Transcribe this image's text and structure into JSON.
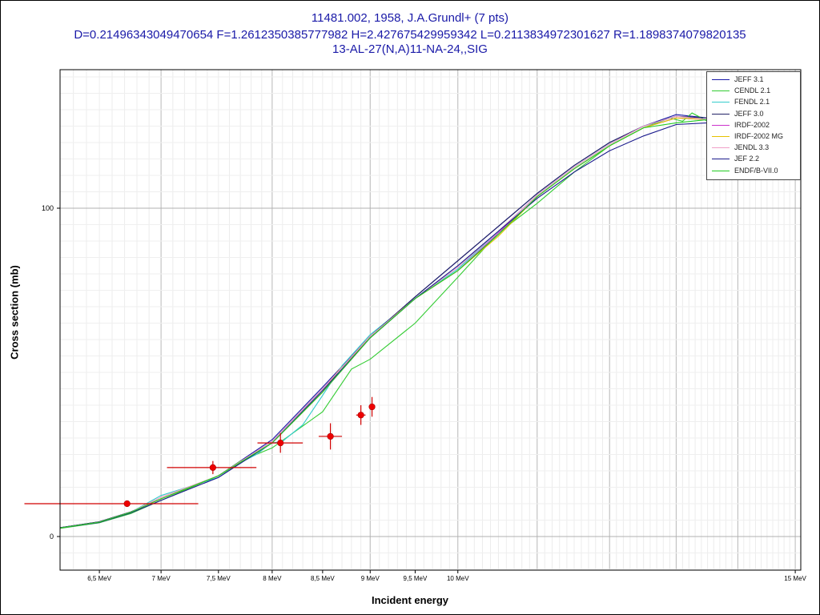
{
  "header": {
    "line1": "11481.002, 1958, J.A.Grundl+ (7 pts)",
    "line2": "D=0.21496343049470654 F=1.2612350385777982 H=2.427675429959342 L=0.2113834972301627 R=1.1898374079820135",
    "line3": "13-AL-27(N,A)11-NA-24,,SIG"
  },
  "chart_data": {
    "type": "line",
    "xlabel": "Incident energy",
    "ylabel": "Cross section (mb)",
    "x_unit": "MeV",
    "xlim": [
      6.2,
      15.1
    ],
    "grid": true,
    "legend_position": "top-right",
    "x_tick_labels": [
      {
        "x": 6.5,
        "label": "6,5 MeV"
      },
      {
        "x": 7.0,
        "label": "7 MeV"
      },
      {
        "x": 7.5,
        "label": "7,5 MeV"
      },
      {
        "x": 8.0,
        "label": "8 MeV"
      },
      {
        "x": 8.5,
        "label": "8,5 MeV"
      },
      {
        "x": 9.0,
        "label": "9 MeV"
      },
      {
        "x": 9.5,
        "label": "9,5 MeV"
      },
      {
        "x": 10.0,
        "label": "10 MeV"
      },
      {
        "x": 15.0,
        "label": "15 MeV"
      }
    ],
    "y_tick_labels": [
      {
        "y": 100,
        "label": "100"
      },
      {
        "y": 0,
        "label": "0"
      }
    ],
    "experimental_points": [
      {
        "x": 6.72,
        "xerr_lo": 0.78,
        "xerr_hi": 0.6,
        "y": 10.0,
        "yerr": 0.6
      },
      {
        "x": 7.45,
        "xerr_lo": 0.4,
        "xerr_hi": 0.4,
        "y": 21.0,
        "yerr": 2.0
      },
      {
        "x": 8.08,
        "xerr_lo": 0.22,
        "xerr_hi": 0.22,
        "y": 28.5,
        "yerr": 3.0
      },
      {
        "x": 8.58,
        "xerr_lo": 0.12,
        "xerr_hi": 0.12,
        "y": 30.5,
        "yerr": 4.0
      },
      {
        "x": 8.9,
        "xerr_lo": 0.05,
        "xerr_hi": 0.05,
        "y": 37.0,
        "yerr": 3.0
      },
      {
        "x": 9.02,
        "xerr_lo": 0.0,
        "xerr_hi": 0.0,
        "y": 39.5,
        "yerr": 3.0
      }
    ],
    "series": [
      {
        "name": "JEFF 3.1",
        "color": "#1a1aa8",
        "points": [
          [
            6.2,
            2.7
          ],
          [
            6.5,
            4.5
          ],
          [
            6.75,
            7.5
          ],
          [
            7.0,
            11.5
          ],
          [
            7.5,
            18.5
          ],
          [
            8.0,
            29.5
          ],
          [
            8.5,
            45.5
          ],
          [
            9.0,
            61.0
          ],
          [
            9.5,
            73.0
          ],
          [
            10.0,
            84.0
          ],
          [
            10.5,
            94.5
          ],
          [
            11.0,
            104.5
          ],
          [
            11.5,
            113.0
          ],
          [
            12.0,
            120.0
          ],
          [
            12.5,
            125.0
          ],
          [
            13.0,
            128.5
          ],
          [
            13.5,
            127.5
          ],
          [
            14.0,
            126.0
          ],
          [
            14.5,
            124.0
          ],
          [
            15.1,
            117.0
          ]
        ]
      },
      {
        "name": "CENDL 2.1",
        "color": "#33cc33",
        "points": [
          [
            6.2,
            2.5
          ],
          [
            6.5,
            4.2
          ],
          [
            6.75,
            7.0
          ],
          [
            7.0,
            11.0
          ],
          [
            7.5,
            18.5
          ],
          [
            7.7,
            23.0
          ],
          [
            8.0,
            27.0
          ],
          [
            8.5,
            38.0
          ],
          [
            8.8,
            51.0
          ],
          [
            9.0,
            54.0
          ],
          [
            9.5,
            65.0
          ],
          [
            10.0,
            79.0
          ],
          [
            10.5,
            92.5
          ],
          [
            11.0,
            101.5
          ],
          [
            11.5,
            111.0
          ],
          [
            12.0,
            119.0
          ],
          [
            12.5,
            124.5
          ],
          [
            12.9,
            127.5
          ],
          [
            13.1,
            126.5
          ],
          [
            13.25,
            129.0
          ],
          [
            13.5,
            126.5
          ],
          [
            14.0,
            126.0
          ],
          [
            14.5,
            123.0
          ],
          [
            15.1,
            117.5
          ]
        ]
      },
      {
        "name": "FENDL 2.1",
        "color": "#33cccc",
        "points": [
          [
            6.2,
            2.6
          ],
          [
            6.5,
            4.4
          ],
          [
            6.75,
            7.4
          ],
          [
            6.9,
            10.5
          ],
          [
            7.0,
            12.5
          ],
          [
            7.5,
            18.0
          ],
          [
            7.7,
            22.5
          ],
          [
            7.85,
            25.0
          ],
          [
            7.95,
            27.5
          ],
          [
            8.0,
            28.5
          ],
          [
            8.1,
            29.0
          ],
          [
            8.3,
            34.0
          ],
          [
            8.5,
            43.0
          ],
          [
            8.7,
            52.0
          ],
          [
            9.0,
            61.5
          ],
          [
            9.5,
            72.5
          ],
          [
            10.0,
            81.5
          ],
          [
            10.5,
            93.0
          ],
          [
            11.0,
            104.0
          ],
          [
            11.5,
            112.5
          ],
          [
            12.0,
            119.5
          ],
          [
            12.5,
            125.0
          ],
          [
            13.0,
            128.0
          ],
          [
            13.5,
            127.0
          ],
          [
            14.0,
            125.5
          ],
          [
            14.5,
            123.5
          ],
          [
            15.1,
            117.0
          ]
        ]
      },
      {
        "name": "JEFF 3.0",
        "color": "#222266",
        "points": [
          [
            6.2,
            2.7
          ],
          [
            6.5,
            4.5
          ],
          [
            6.75,
            7.5
          ],
          [
            7.0,
            11.5
          ],
          [
            7.5,
            18.5
          ],
          [
            8.0,
            29.0
          ],
          [
            8.5,
            45.0
          ],
          [
            9.0,
            61.0
          ],
          [
            9.5,
            73.0
          ],
          [
            10.0,
            84.0
          ],
          [
            10.5,
            94.5
          ],
          [
            11.0,
            104.5
          ],
          [
            11.5,
            113.0
          ],
          [
            12.0,
            120.0
          ],
          [
            12.5,
            125.0
          ],
          [
            13.0,
            128.0
          ],
          [
            13.5,
            127.5
          ],
          [
            14.0,
            126.0
          ],
          [
            14.5,
            124.0
          ],
          [
            15.1,
            117.0
          ]
        ]
      },
      {
        "name": "IRDF-2002",
        "color": "#cc33cc",
        "points": [
          [
            6.2,
            2.6
          ],
          [
            6.5,
            4.4
          ],
          [
            6.75,
            7.4
          ],
          [
            7.0,
            11.5
          ],
          [
            7.5,
            18.5
          ],
          [
            8.0,
            28.5
          ],
          [
            8.5,
            44.0
          ],
          [
            9.0,
            60.5
          ],
          [
            9.5,
            72.5
          ],
          [
            10.0,
            81.0
          ],
          [
            10.5,
            92.5
          ],
          [
            11.0,
            103.5
          ],
          [
            11.5,
            112.0
          ],
          [
            12.0,
            119.0
          ],
          [
            12.5,
            124.5
          ],
          [
            13.0,
            127.5
          ],
          [
            13.5,
            127.0
          ],
          [
            14.0,
            125.5
          ],
          [
            14.5,
            123.5
          ],
          [
            15.1,
            117.0
          ]
        ]
      },
      {
        "name": "IRDF-2002 MG",
        "color": "#e6c200",
        "points": [
          [
            6.2,
            2.6
          ],
          [
            6.5,
            4.4
          ],
          [
            6.75,
            7.4
          ],
          [
            7.0,
            11.5
          ],
          [
            7.5,
            18.5
          ],
          [
            8.0,
            28.5
          ],
          [
            8.5,
            44.0
          ],
          [
            8.65,
            50.0
          ],
          [
            9.0,
            60.5
          ],
          [
            9.3,
            68.0
          ],
          [
            9.5,
            72.5
          ],
          [
            10.0,
            81.0
          ],
          [
            10.5,
            91.5
          ],
          [
            11.0,
            103.5
          ],
          [
            11.5,
            112.0
          ],
          [
            12.0,
            119.0
          ],
          [
            12.5,
            124.5
          ],
          [
            13.0,
            127.5
          ],
          [
            13.5,
            127.0
          ],
          [
            14.0,
            125.5
          ],
          [
            14.5,
            123.5
          ],
          [
            15.1,
            117.0
          ]
        ]
      },
      {
        "name": "JENDL 3.3",
        "color": "#f0a0c8",
        "points": [
          [
            6.2,
            2.6
          ],
          [
            6.5,
            4.4
          ],
          [
            6.75,
            7.4
          ],
          [
            7.0,
            12.0
          ],
          [
            7.5,
            18.5
          ],
          [
            8.0,
            29.0
          ],
          [
            8.5,
            45.0
          ],
          [
            9.0,
            61.0
          ],
          [
            9.5,
            72.5
          ],
          [
            10.0,
            82.0
          ],
          [
            10.5,
            93.0
          ],
          [
            11.0,
            104.0
          ],
          [
            11.5,
            112.5
          ],
          [
            12.0,
            119.5
          ],
          [
            12.5,
            125.0
          ],
          [
            13.0,
            128.0
          ],
          [
            13.5,
            127.0
          ],
          [
            14.0,
            125.5
          ],
          [
            14.5,
            123.5
          ],
          [
            15.1,
            117.0
          ]
        ]
      },
      {
        "name": "JEF 2.2",
        "color": "#1a1a8c",
        "points": [
          [
            6.2,
            2.6
          ],
          [
            6.5,
            4.3
          ],
          [
            6.75,
            7.2
          ],
          [
            7.0,
            11.0
          ],
          [
            7.5,
            18.0
          ],
          [
            8.0,
            28.5
          ],
          [
            8.5,
            44.5
          ],
          [
            9.0,
            60.5
          ],
          [
            9.5,
            72.5
          ],
          [
            10.0,
            82.5
          ],
          [
            10.5,
            93.0
          ],
          [
            11.0,
            103.0
          ],
          [
            11.5,
            111.0
          ],
          [
            12.0,
            117.5
          ],
          [
            12.5,
            122.0
          ],
          [
            13.0,
            125.5
          ],
          [
            13.5,
            126.0
          ],
          [
            14.0,
            125.0
          ],
          [
            14.5,
            123.0
          ],
          [
            15.1,
            117.0
          ]
        ]
      },
      {
        "name": "ENDF/B-VII.0",
        "color": "#22cc22",
        "points": [
          [
            6.2,
            2.6
          ],
          [
            6.5,
            4.4
          ],
          [
            6.75,
            7.4
          ],
          [
            7.0,
            11.5
          ],
          [
            7.5,
            18.5
          ],
          [
            8.0,
            28.5
          ],
          [
            8.5,
            44.0
          ],
          [
            9.0,
            60.5
          ],
          [
            9.5,
            72.5
          ],
          [
            10.0,
            81.0
          ],
          [
            10.5,
            92.0
          ],
          [
            11.0,
            103.5
          ],
          [
            11.5,
            112.0
          ],
          [
            12.0,
            119.0
          ],
          [
            12.5,
            124.5
          ],
          [
            13.0,
            126.0
          ],
          [
            13.5,
            127.0
          ],
          [
            14.0,
            125.5
          ],
          [
            14.5,
            123.5
          ],
          [
            15.1,
            117.0
          ]
        ]
      }
    ]
  }
}
